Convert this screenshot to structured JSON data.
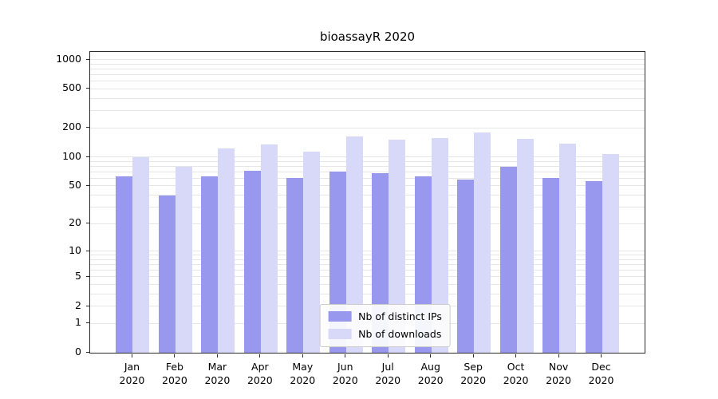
{
  "figure": {
    "title": "bioassayR 2020"
  },
  "chart_data": {
    "type": "bar",
    "title": "bioassayR 2020",
    "y_scale": "log1p",
    "grid": true,
    "legend_position": "lower center",
    "categories": [
      "Jan",
      "Feb",
      "Mar",
      "Apr",
      "May",
      "Jun",
      "Jul",
      "Aug",
      "Sep",
      "Oct",
      "Nov",
      "Dec"
    ],
    "category_year": "2020",
    "series": [
      {
        "name": "Nb of distinct IPs",
        "color": "#9898ee",
        "values": [
          63,
          40,
          63,
          72,
          60,
          70,
          68,
          63,
          58,
          79,
          60,
          56
        ]
      },
      {
        "name": "Nb of downloads",
        "color": "#d8d8f8",
        "values": [
          100,
          79,
          122,
          134,
          113,
          164,
          152,
          158,
          178,
          154,
          136,
          108
        ]
      }
    ],
    "yticks": [
      0,
      1,
      2,
      5,
      10,
      20,
      50,
      100,
      200,
      500,
      1000
    ],
    "ylim": [
      0,
      1200
    ],
    "xlabel": "",
    "ylabel": ""
  }
}
